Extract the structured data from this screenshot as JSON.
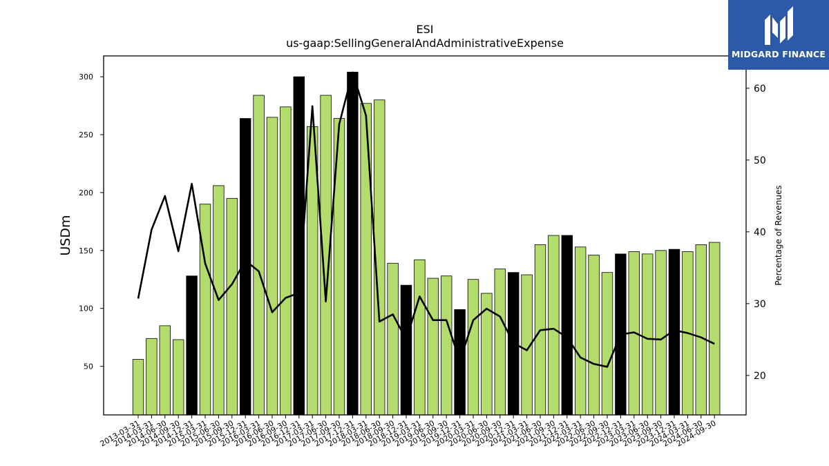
{
  "brand": {
    "name": "MIDGARD FINANCE",
    "color": "#2d5aa6"
  },
  "chart_data": {
    "type": "bar",
    "title": "ESI",
    "subtitle": "us-gaap:SellingGeneralAndAdministrativeExpense",
    "ylabel": "USDm",
    "y2label": "Percentage of Revenues",
    "ylim": [
      8,
      318
    ],
    "y2lim": [
      14.5,
      64.5
    ],
    "yticks": [
      50,
      100,
      150,
      200,
      250,
      300
    ],
    "y2ticks": [
      20,
      30,
      40,
      50,
      60
    ],
    "colors": {
      "quarter": "#b3dc6c",
      "annual": "#000000",
      "line": "#000000"
    },
    "categories": [
      "2013-03-31",
      "2014-03-31",
      "2014-06-30",
      "2014-09-30",
      "2014-12-31",
      "2015-03-31",
      "2015-06-30",
      "2015-09-30",
      "2015-12-31",
      "2016-03-31",
      "2016-06-30",
      "2016-09-30",
      "2016-12-31",
      "2017-03-31",
      "2017-06-30",
      "2017-09-30",
      "2017-12-31",
      "2018-03-31",
      "2018-06-30",
      "2018-09-30",
      "2018-12-31",
      "2019-03-31",
      "2019-06-30",
      "2019-09-30",
      "2019-12-31",
      "2020-03-31",
      "2020-06-30",
      "2020-09-30",
      "2020-12-31",
      "2021-03-31",
      "2021-06-30",
      "2021-09-30",
      "2021-12-31",
      "2022-03-31",
      "2022-06-30",
      "2022-09-30",
      "2022-12-31",
      "2023-03-31",
      "2023-06-30",
      "2023-09-30",
      "2023-12-31",
      "2024-03-31",
      "2024-06-30",
      "2024-09-30"
    ],
    "series": [
      {
        "type": "bar",
        "values": [
          56,
          74,
          85,
          73,
          128,
          190,
          206,
          195,
          264,
          284,
          265,
          274,
          300,
          257,
          284,
          264,
          304,
          277,
          280,
          139,
          120,
          142,
          126,
          128,
          99,
          125,
          113,
          134,
          131,
          129,
          155,
          163,
          163,
          153,
          146,
          131,
          147,
          149,
          147,
          150,
          151,
          149,
          155,
          157
        ],
        "annual": [
          false,
          false,
          false,
          false,
          true,
          false,
          false,
          false,
          true,
          false,
          false,
          false,
          true,
          false,
          false,
          false,
          true,
          false,
          false,
          false,
          true,
          false,
          false,
          false,
          true,
          false,
          false,
          false,
          true,
          false,
          false,
          false,
          true,
          false,
          false,
          false,
          true,
          false,
          false,
          false,
          true,
          false,
          false,
          false
        ]
      },
      {
        "type": "line",
        "axis": "right",
        "values": [
          30.7,
          40.3,
          45.0,
          37.3,
          46.7,
          35.6,
          30.5,
          32.7,
          36.0,
          34.5,
          28.8,
          30.8,
          31.5,
          57.5,
          30.3,
          55.0,
          62.2,
          56.2,
          27.5,
          28.5,
          25.0,
          31.0,
          27.7,
          27.7,
          22.0,
          27.7,
          29.3,
          28.2,
          24.5,
          23.5,
          26.3,
          26.5,
          25.3,
          22.5,
          21.6,
          21.2,
          25.7,
          26.0,
          25.1,
          25.0,
          26.3,
          25.9,
          25.3,
          24.4
        ]
      }
    ]
  }
}
